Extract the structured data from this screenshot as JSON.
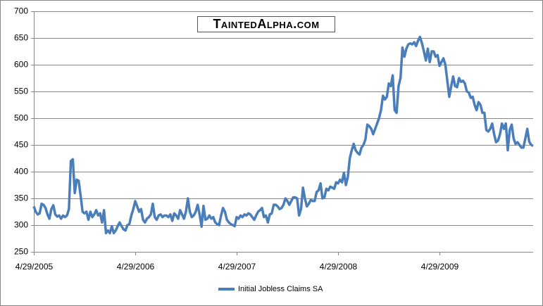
{
  "chart_data": {
    "type": "line",
    "annotation": "TaintedAlpha.com",
    "categories": [
      "4/29/2005",
      null,
      null,
      null,
      null,
      null,
      null,
      null,
      null,
      null,
      null,
      null,
      null,
      null,
      null,
      null,
      null,
      null,
      null,
      null,
      null,
      null,
      null,
      null,
      null,
      null,
      null,
      null,
      null,
      null,
      null,
      null,
      null,
      null,
      null,
      null,
      null,
      null,
      null,
      null,
      null,
      null,
      null,
      null,
      null,
      null,
      null,
      null,
      null,
      null,
      null,
      null,
      "4/29/2006",
      null,
      null,
      null,
      null,
      null,
      null,
      null,
      null,
      null,
      null,
      null,
      null,
      null,
      null,
      null,
      null,
      null,
      null,
      null,
      null,
      null,
      null,
      null,
      null,
      null,
      null,
      null,
      null,
      null,
      null,
      null,
      null,
      null,
      null,
      null,
      null,
      null,
      null,
      null,
      null,
      null,
      null,
      null,
      null,
      null,
      null,
      null,
      null,
      null,
      null,
      null,
      "4/29/2007",
      null,
      null,
      null,
      null,
      null,
      null,
      null,
      null,
      null,
      null,
      null,
      null,
      null,
      null,
      null,
      null,
      null,
      null,
      null,
      null,
      null,
      null,
      null,
      null,
      null,
      null,
      null,
      null,
      null,
      null,
      null,
      null,
      null,
      null,
      null,
      null,
      null,
      null,
      null,
      null,
      null,
      null,
      null,
      null,
      null,
      null,
      null,
      null,
      null,
      null,
      null,
      "4/29/2008",
      null,
      null,
      null,
      null,
      null,
      null,
      null,
      null,
      null,
      null,
      null,
      null,
      null,
      null,
      null,
      null,
      null,
      null,
      null,
      null,
      null,
      null,
      null,
      null,
      null,
      null,
      null,
      null,
      null,
      null,
      null,
      null,
      null,
      null,
      null,
      null,
      null,
      null,
      null,
      null,
      null,
      null,
      null,
      null,
      null,
      null,
      null,
      null,
      null,
      null,
      null,
      "4/29/2009",
      null,
      null,
      null,
      null,
      null,
      null,
      null,
      null,
      null,
      null,
      null,
      null,
      null,
      null,
      null,
      null,
      null,
      null,
      null,
      null,
      null,
      null,
      null,
      null,
      null,
      null,
      null,
      null,
      null,
      null,
      null,
      null,
      null,
      null,
      null,
      null,
      null,
      null,
      null,
      null,
      null,
      null,
      null,
      null,
      null,
      null,
      null,
      null
    ],
    "series": [
      {
        "name": "Initial Jobless Claims SA",
        "color": "#4a7ebb",
        "values": [
          335,
          325,
          320,
          322,
          340,
          338,
          332,
          320,
          312,
          330,
          337,
          320,
          316,
          318,
          312,
          318,
          315,
          318,
          330,
          420,
          423,
          360,
          385,
          383,
          355,
          325,
          322,
          325,
          310,
          325,
          315,
          320,
          328,
          318,
          322,
          305,
          328,
          285,
          290,
          285,
          298,
          285,
          290,
          298,
          305,
          298,
          292,
          290,
          300,
          302,
          318,
          330,
          345,
          335,
          325,
          330,
          310,
          305,
          312,
          315,
          320,
          340,
          315,
          310,
          318,
          320,
          315,
          318,
          318,
          315,
          320,
          308,
          322,
          318,
          312,
          328,
          320,
          312,
          325,
          350,
          325,
          315,
          318,
          325,
          338,
          320,
          297,
          336,
          310,
          312,
          318,
          312,
          315,
          305,
          302,
          300,
          318,
          332,
          325,
          310,
          305,
          302,
          300,
          298,
          315,
          312,
          318,
          315,
          320,
          318,
          322,
          320,
          315,
          310,
          318,
          325,
          328,
          332,
          315,
          318,
          305,
          320,
          322,
          338,
          338,
          335,
          330,
          332,
          338,
          350,
          345,
          338,
          345,
          352,
          352,
          350,
          318,
          330,
          370,
          350,
          335,
          340,
          347,
          345,
          345,
          362,
          365,
          378,
          350,
          352,
          368,
          365,
          372,
          370,
          368,
          380,
          378,
          385,
          380,
          398,
          375,
          390,
          425,
          440,
          452,
          440,
          435,
          432,
          445,
          450,
          460,
          488,
          485,
          480,
          470,
          480,
          490,
          500,
          515,
          542,
          535,
          540,
          565,
          560,
          580,
          515,
          510,
          560,
          575,
          632,
          615,
          630,
          638,
          640,
          638,
          642,
          635,
          645,
          652,
          640,
          625,
          608,
          630,
          605,
          625,
          625,
          615,
          618,
          598,
          605,
          612,
          600,
          570,
          540,
          560,
          578,
          560,
          558,
          575,
          568,
          570,
          565,
          550,
          548,
          538,
          540,
          525,
          515,
          530,
          525,
          510,
          510,
          478,
          475,
          480,
          490,
          470,
          455,
          458,
          470,
          490,
          480,
          490,
          440,
          478,
          488,
          462,
          452,
          455,
          450,
          445,
          445,
          462,
          480,
          456,
          450,
          448
        ]
      }
    ],
    "ylim": [
      250,
      700
    ],
    "yticks": [
      250,
      300,
      350,
      400,
      450,
      500,
      550,
      600,
      650,
      700
    ],
    "grid": true,
    "legend": "bottom"
  }
}
